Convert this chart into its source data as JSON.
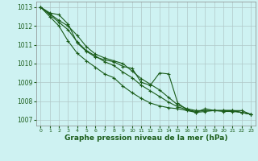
{
  "title": "Graphe pression niveau de la mer (hPa)",
  "background_color": "#cef2f2",
  "grid_color": "#b0c8c8",
  "line_color": "#1a5c1a",
  "marker": "+",
  "markersize": 3.5,
  "linewidth": 0.8,
  "markeredgewidth": 0.8,
  "xlim": [
    -0.5,
    23.5
  ],
  "ylim": [
    1006.7,
    1013.3
  ],
  "yticks": [
    1007,
    1008,
    1009,
    1010,
    1011,
    1012,
    1013
  ],
  "xticks": [
    0,
    1,
    2,
    3,
    4,
    5,
    6,
    7,
    8,
    9,
    10,
    11,
    12,
    13,
    14,
    15,
    16,
    17,
    18,
    19,
    20,
    21,
    22,
    23
  ],
  "tick_fontsize": 5.0,
  "xlabel_fontsize": 6.5,
  "series": [
    [
      1013.0,
      1012.7,
      1012.6,
      1012.1,
      1011.1,
      1010.65,
      1010.35,
      1010.2,
      1010.1,
      1009.85,
      1009.75,
      1009.0,
      1008.85,
      1009.5,
      1009.45,
      1007.9,
      1007.55,
      1007.4,
      1007.6,
      1007.5,
      1007.5,
      1007.5,
      1007.5,
      1007.3
    ],
    [
      1013.0,
      1012.65,
      1012.3,
      1012.0,
      1011.5,
      1010.9,
      1010.5,
      1010.3,
      1010.15,
      1010.0,
      1009.6,
      1009.2,
      1008.9,
      1008.6,
      1008.2,
      1007.8,
      1007.6,
      1007.5,
      1007.5,
      1007.5,
      1007.5,
      1007.5,
      1007.4,
      1007.3
    ],
    [
      1013.0,
      1012.6,
      1012.2,
      1011.8,
      1011.15,
      1010.7,
      1010.4,
      1010.1,
      1009.9,
      1009.55,
      1009.25,
      1008.85,
      1008.55,
      1008.25,
      1007.95,
      1007.7,
      1007.55,
      1007.45,
      1007.5,
      1007.5,
      1007.45,
      1007.45,
      1007.4,
      1007.3
    ],
    [
      1013.0,
      1012.5,
      1012.0,
      1011.2,
      1010.55,
      1010.15,
      1009.8,
      1009.45,
      1009.25,
      1008.8,
      1008.45,
      1008.15,
      1007.9,
      1007.75,
      1007.65,
      1007.6,
      1007.5,
      1007.4,
      1007.45,
      1007.5,
      1007.5,
      1007.5,
      1007.4,
      1007.3
    ]
  ]
}
